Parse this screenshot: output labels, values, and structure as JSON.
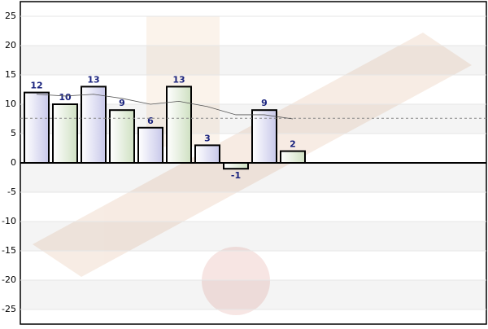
{
  "chart_data": {
    "type": "bar",
    "values": [
      12,
      10,
      13,
      9,
      6,
      13,
      3,
      -1,
      9,
      2
    ],
    "colors": [
      "#dcdcf2",
      "#dde9d3"
    ],
    "trend_values": [
      11.7,
      11.4,
      11.7,
      11,
      10,
      10.5,
      9.6,
      8.2,
      8.2,
      7.5
    ],
    "average": 7.6,
    "ylim": [
      -27.5,
      27.5
    ],
    "yticks": [
      -25,
      -20,
      -15,
      -10,
      -5,
      0,
      5,
      10,
      15,
      20,
      25
    ],
    "grid": true
  }
}
